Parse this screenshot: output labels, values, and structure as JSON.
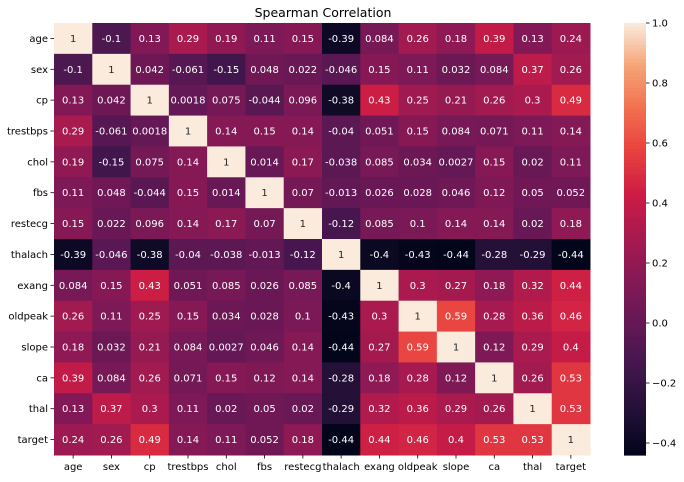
{
  "chart_data": {
    "type": "heatmap",
    "title": "Spearman Correlation",
    "xlabel": "",
    "ylabel": "",
    "categories": [
      "age",
      "sex",
      "cp",
      "trestbps",
      "chol",
      "fbs",
      "restecg",
      "thalach",
      "exang",
      "oldpeak",
      "slope",
      "ca",
      "thal",
      "target"
    ],
    "values": [
      [
        1,
        -0.1,
        0.13,
        0.29,
        0.19,
        0.11,
        0.15,
        -0.39,
        0.084,
        0.26,
        0.18,
        0.39,
        0.13,
        0.24
      ],
      [
        -0.1,
        1,
        0.042,
        -0.061,
        -0.15,
        0.048,
        0.022,
        -0.046,
        0.15,
        0.11,
        0.032,
        0.084,
        0.37,
        0.26
      ],
      [
        0.13,
        0.042,
        1,
        0.0018,
        0.075,
        -0.044,
        0.096,
        -0.38,
        0.43,
        0.25,
        0.21,
        0.26,
        0.3,
        0.49
      ],
      [
        0.29,
        -0.061,
        0.0018,
        1,
        0.14,
        0.15,
        0.14,
        -0.04,
        0.051,
        0.15,
        0.084,
        0.071,
        0.11,
        0.14
      ],
      [
        0.19,
        -0.15,
        0.075,
        0.14,
        1,
        0.014,
        0.17,
        -0.038,
        0.085,
        0.034,
        0.0027,
        0.15,
        0.02,
        0.11
      ],
      [
        0.11,
        0.048,
        -0.044,
        0.15,
        0.014,
        1,
        0.07,
        -0.013,
        0.026,
        0.028,
        0.046,
        0.12,
        0.05,
        0.052
      ],
      [
        0.15,
        0.022,
        0.096,
        0.14,
        0.17,
        0.07,
        1,
        -0.12,
        0.085,
        0.1,
        0.14,
        0.14,
        0.02,
        0.18
      ],
      [
        -0.39,
        -0.046,
        -0.38,
        -0.04,
        -0.038,
        -0.013,
        -0.12,
        1,
        -0.4,
        -0.43,
        -0.44,
        -0.28,
        -0.29,
        -0.44
      ],
      [
        0.084,
        0.15,
        0.43,
        0.051,
        0.085,
        0.026,
        0.085,
        -0.4,
        1,
        0.3,
        0.27,
        0.18,
        0.32,
        0.44
      ],
      [
        0.26,
        0.11,
        0.25,
        0.15,
        0.034,
        0.028,
        0.1,
        -0.43,
        0.3,
        1,
        0.59,
        0.28,
        0.36,
        0.46
      ],
      [
        0.18,
        0.032,
        0.21,
        0.084,
        0.0027,
        0.046,
        0.14,
        -0.44,
        0.27,
        0.59,
        1,
        0.12,
        0.29,
        0.4
      ],
      [
        0.39,
        0.084,
        0.26,
        0.071,
        0.15,
        0.12,
        0.14,
        -0.28,
        0.18,
        0.28,
        0.12,
        1,
        0.26,
        0.53
      ],
      [
        0.13,
        0.37,
        0.3,
        0.11,
        0.02,
        0.05,
        0.02,
        -0.29,
        0.32,
        0.36,
        0.29,
        0.26,
        1,
        0.53
      ],
      [
        0.24,
        0.26,
        0.49,
        0.14,
        0.11,
        0.052,
        0.18,
        -0.44,
        0.44,
        0.46,
        0.4,
        0.53,
        0.53,
        1
      ]
    ],
    "colorbar": {
      "range": [
        -0.44,
        1.0
      ],
      "ticks": [
        1.0,
        0.8,
        0.6,
        0.4,
        0.2,
        0.0,
        -0.2,
        -0.4
      ],
      "tick_labels": [
        "1.0",
        "0.8",
        "0.6",
        "0.4",
        "0.2",
        "0.0",
        "−0.2",
        "−0.4"
      ],
      "colormap": "rocket"
    },
    "grid": false,
    "legend": "colorbar-right"
  }
}
